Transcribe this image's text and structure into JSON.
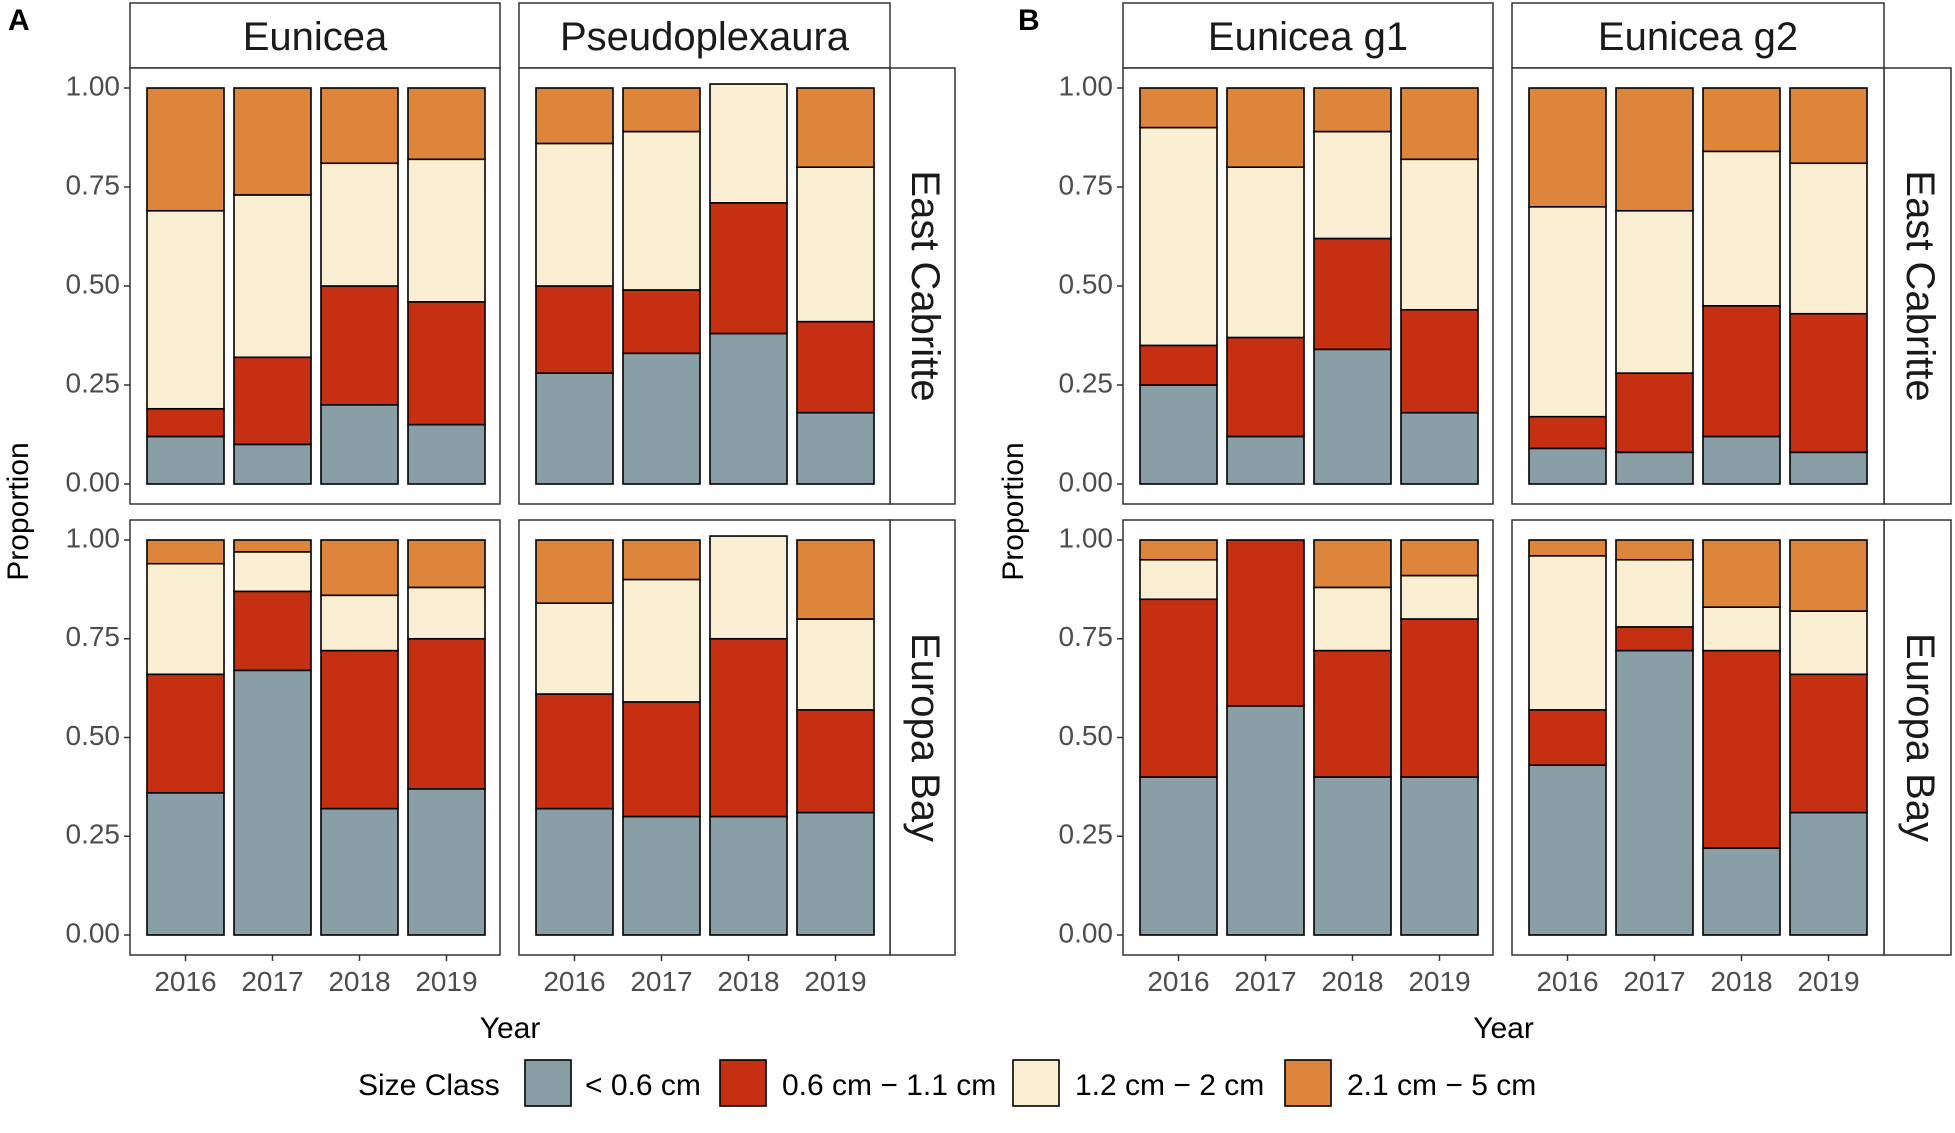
{
  "chart_data": {
    "type": "bar",
    "stacked": true,
    "panel_letters": [
      "A",
      "B"
    ],
    "xlabel": "Year",
    "ylabel": "Proportion",
    "ylim": [
      0,
      1
    ],
    "yticks": [
      "0.00",
      "0.25",
      "0.50",
      "0.75",
      "1.00"
    ],
    "categories": [
      "2016",
      "2017",
      "2018",
      "2019"
    ],
    "legend": {
      "title": "Size Class",
      "position": "bottom",
      "entries": [
        {
          "label": "< 0.6 cm",
          "color": "#8a9ea6"
        },
        {
          "label": "0.6 cm − 1.1 cm",
          "color": "#c63012"
        },
        {
          "label": "1.2 cm − 2 cm",
          "color": "#fbefd3"
        },
        {
          "label": "2.1 cm − 5 cm",
          "color": "#dd853b"
        }
      ]
    },
    "sites": [
      "East Cabritte",
      "Europa Bay"
    ],
    "panels": [
      {
        "letter": "A",
        "genera": [
          "Eunicea",
          "Pseudoplexaura"
        ],
        "data": {
          "Eunicea": {
            "East Cabritte": [
              [
                0.12,
                0.07,
                0.5,
                0.31
              ],
              [
                0.1,
                0.22,
                0.41,
                0.27
              ],
              [
                0.2,
                0.3,
                0.31,
                0.19
              ],
              [
                0.15,
                0.31,
                0.36,
                0.18
              ]
            ],
            "Europa Bay": [
              [
                0.36,
                0.3,
                0.28,
                0.06
              ],
              [
                0.67,
                0.2,
                0.1,
                0.03
              ],
              [
                0.32,
                0.4,
                0.14,
                0.14
              ],
              [
                0.37,
                0.38,
                0.13,
                0.12
              ]
            ]
          },
          "Pseudoplexaura": {
            "East Cabritte": [
              [
                0.28,
                0.22,
                0.36,
                0.14
              ],
              [
                0.33,
                0.16,
                0.4,
                0.11
              ],
              [
                0.38,
                0.33,
                0.3,
                0.0
              ],
              [
                0.18,
                0.23,
                0.39,
                0.2
              ]
            ],
            "Europa Bay": [
              [
                0.32,
                0.29,
                0.23,
                0.16
              ],
              [
                0.3,
                0.29,
                0.31,
                0.1
              ],
              [
                0.3,
                0.45,
                0.26,
                0.0
              ],
              [
                0.31,
                0.26,
                0.23,
                0.2
              ]
            ]
          }
        }
      },
      {
        "letter": "B",
        "genera": [
          "Eunicea g1",
          "Eunicea g2"
        ],
        "data": {
          "Eunicea g1": {
            "East Cabritte": [
              [
                0.25,
                0.1,
                0.55,
                0.1
              ],
              [
                0.12,
                0.25,
                0.43,
                0.2
              ],
              [
                0.34,
                0.28,
                0.27,
                0.11
              ],
              [
                0.18,
                0.26,
                0.38,
                0.18
              ]
            ],
            "Europa Bay": [
              [
                0.4,
                0.45,
                0.1,
                0.05
              ],
              [
                0.58,
                0.42,
                0.0,
                0.0
              ],
              [
                0.4,
                0.32,
                0.16,
                0.12
              ],
              [
                0.4,
                0.4,
                0.11,
                0.09
              ]
            ]
          },
          "Eunicea g2": {
            "East Cabritte": [
              [
                0.09,
                0.08,
                0.53,
                0.3
              ],
              [
                0.08,
                0.2,
                0.41,
                0.31
              ],
              [
                0.12,
                0.33,
                0.39,
                0.16
              ],
              [
                0.08,
                0.35,
                0.38,
                0.19
              ]
            ],
            "Europa Bay": [
              [
                0.43,
                0.14,
                0.39,
                0.04
              ],
              [
                0.72,
                0.06,
                0.17,
                0.05
              ],
              [
                0.22,
                0.5,
                0.11,
                0.17
              ],
              [
                0.31,
                0.35,
                0.16,
                0.18
              ]
            ]
          }
        }
      }
    ]
  }
}
